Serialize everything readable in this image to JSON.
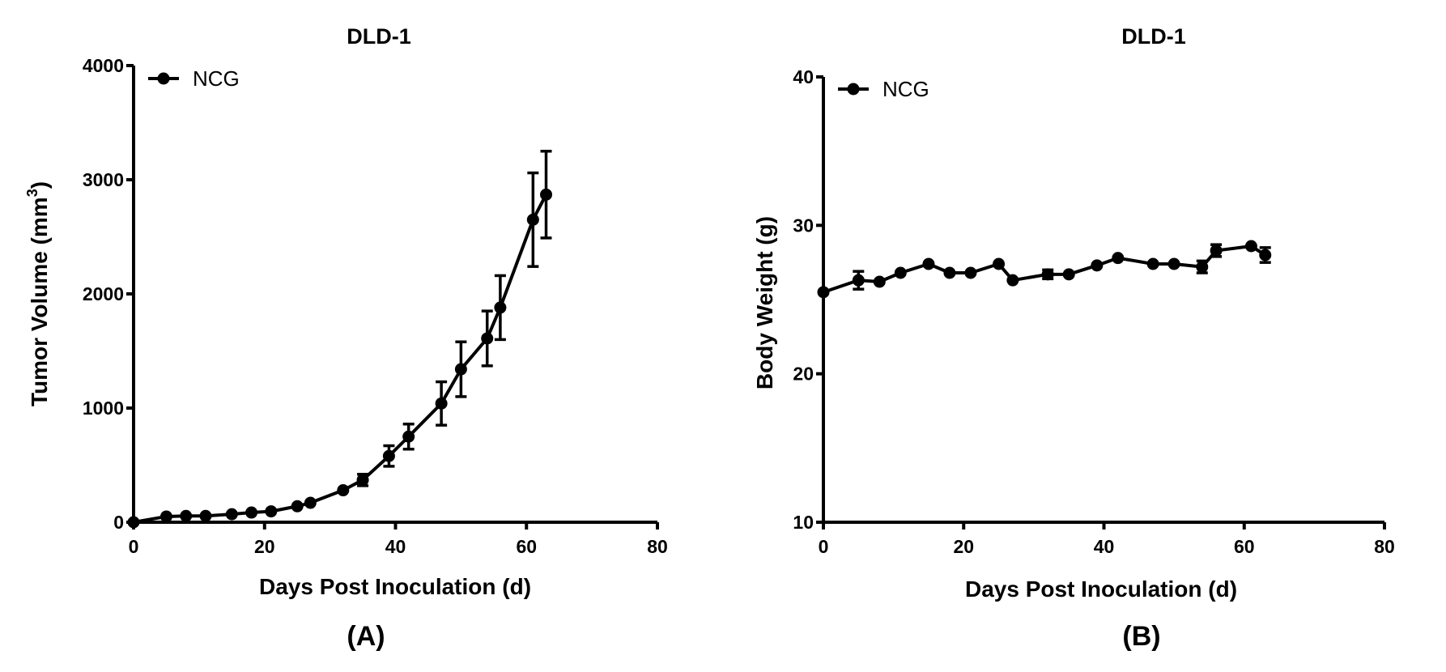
{
  "chart_data": [
    {
      "type": "line",
      "title": "DLD-1",
      "xlabel": "Days Post Inoculation (d)",
      "ylabel": "Tumor Volume (mm",
      "ylabel_sup": "3",
      "ylabel_end": ")",
      "caption": "(A)",
      "xlim": [
        0,
        80
      ],
      "ylim": [
        0,
        4000
      ],
      "xticks": [
        "0",
        "20",
        "40",
        "60",
        "80"
      ],
      "yticks": [
        "0",
        "1000",
        "2000",
        "3000",
        "4000"
      ],
      "legend_position": "top-left",
      "series": [
        {
          "name": "NCG",
          "marker": "circle",
          "color": "#000000",
          "x": [
            0,
            5,
            8,
            11,
            15,
            18,
            21,
            25,
            27,
            32,
            35,
            39,
            42,
            47,
            50,
            54,
            56,
            61,
            63
          ],
          "y": [
            0,
            50,
            55,
            55,
            70,
            85,
            95,
            140,
            170,
            280,
            370,
            580,
            750,
            1040,
            1340,
            1610,
            1880,
            2650,
            2870
          ],
          "error": [
            0,
            0,
            0,
            0,
            0,
            0,
            0,
            0,
            0,
            0,
            50,
            90,
            110,
            190,
            240,
            240,
            280,
            410,
            380
          ]
        }
      ]
    },
    {
      "type": "line",
      "title": "DLD-1",
      "xlabel": "Days Post Inoculation  (d)",
      "ylabel": "Body Weight (g)",
      "caption": "(B)",
      "xlim": [
        0,
        80
      ],
      "ylim": [
        10,
        40
      ],
      "xticks": [
        "0",
        "20",
        "40",
        "60",
        "80"
      ],
      "yticks": [
        "10",
        "20",
        "30",
        "40"
      ],
      "legend_position": "top-left",
      "series": [
        {
          "name": "NCG",
          "marker": "circle",
          "color": "#000000",
          "x": [
            0,
            5,
            8,
            11,
            15,
            18,
            21,
            25,
            27,
            32,
            35,
            39,
            42,
            47,
            50,
            54,
            56,
            61,
            63
          ],
          "y": [
            25.5,
            26.3,
            26.2,
            26.8,
            27.4,
            26.8,
            26.8,
            27.4,
            26.3,
            26.7,
            26.7,
            27.3,
            27.8,
            27.4,
            27.4,
            27.2,
            28.3,
            28.6,
            28.0
          ],
          "error": [
            0,
            0.6,
            0,
            0,
            0,
            0,
            0,
            0,
            0,
            0.3,
            0,
            0,
            0,
            0,
            0,
            0.4,
            0.4,
            0,
            0.5
          ]
        }
      ]
    }
  ]
}
